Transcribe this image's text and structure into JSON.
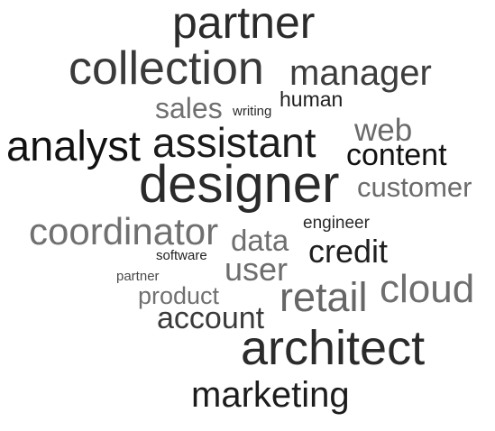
{
  "words": [
    {
      "text": "partner",
      "color": "#2b2b2b"
    },
    {
      "text": "collection",
      "color": "#3a3a3a"
    },
    {
      "text": "manager",
      "color": "#3d3d3d"
    },
    {
      "text": "sales",
      "color": "#707070"
    },
    {
      "text": "writing",
      "color": "#2a2a2a"
    },
    {
      "text": "human",
      "color": "#1f1f1f"
    },
    {
      "text": "web",
      "color": "#6a6a6a"
    },
    {
      "text": "analyst",
      "color": "#111111"
    },
    {
      "text": "assistant",
      "color": "#1c1c1c"
    },
    {
      "text": "content",
      "color": "#111111"
    },
    {
      "text": "designer",
      "color": "#2a2a2a"
    },
    {
      "text": "customer",
      "color": "#6b6b6b"
    },
    {
      "text": "coordinator",
      "color": "#707070"
    },
    {
      "text": "data",
      "color": "#6f6f6f"
    },
    {
      "text": "engineer",
      "color": "#2a2a2a"
    },
    {
      "text": "credit",
      "color": "#1f1f1f"
    },
    {
      "text": "software",
      "color": "#1f1f1f"
    },
    {
      "text": "user",
      "color": "#6d6d6d"
    },
    {
      "text": "partner",
      "color": "#4a4a4a"
    },
    {
      "text": "cloud",
      "color": "#6e6e6e"
    },
    {
      "text": "product",
      "color": "#707070"
    },
    {
      "text": "retail",
      "color": "#666666"
    },
    {
      "text": "account",
      "color": "#3a3a3a"
    },
    {
      "text": "architect",
      "color": "#2b2b2b"
    },
    {
      "text": "marketing",
      "color": "#1c1c1c"
    }
  ]
}
